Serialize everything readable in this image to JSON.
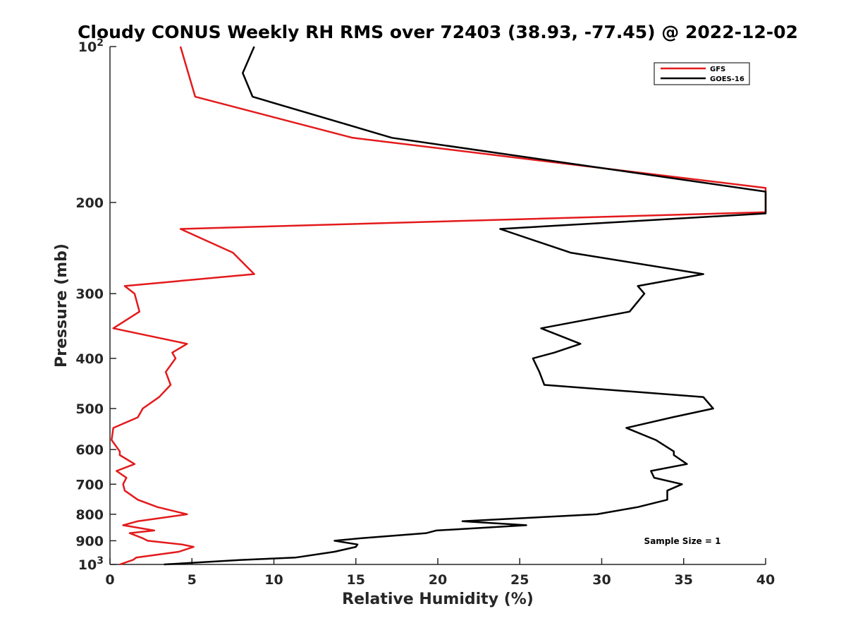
{
  "chart_data": {
    "type": "line",
    "title": "Cloudy CONUS Weekly RH RMS over 72403 (38.93, -77.45) @ 2022-12-02",
    "xlabel": "Relative Humidity (%)",
    "ylabel": "Pressure (mb)",
    "xlim": [
      0,
      40
    ],
    "ylim": [
      100,
      1000
    ],
    "y_scale": "log",
    "y_reversed": true,
    "x_ticks": [
      "0",
      "5",
      "10",
      "15",
      "20",
      "25",
      "30",
      "35",
      "40"
    ],
    "y_ticks": [
      {
        "value": 100,
        "base": "10",
        "exp": "2"
      },
      {
        "value": 200,
        "label": "200"
      },
      {
        "value": 300,
        "label": "300"
      },
      {
        "value": 400,
        "label": "400"
      },
      {
        "value": 500,
        "label": "500"
      },
      {
        "value": 600,
        "label": "600"
      },
      {
        "value": 700,
        "label": "700"
      },
      {
        "value": 800,
        "label": "800"
      },
      {
        "value": 900,
        "label": "900"
      },
      {
        "value": 1000,
        "base": "10",
        "exp": "3"
      }
    ],
    "legend_position": "top-right",
    "annotation": "Sample Size = 1",
    "series": [
      {
        "name": "GFS",
        "color": "#e31a1c",
        "points": [
          [
            4.3,
            100
          ],
          [
            5.2,
            125
          ],
          [
            14.8,
            150
          ],
          [
            40,
            187.5
          ],
          [
            40,
            208.9
          ],
          [
            4.3,
            225
          ],
          [
            7.5,
            250
          ],
          [
            8.8,
            275
          ],
          [
            0.9,
            290
          ],
          [
            1.5,
            300
          ],
          [
            1.8,
            325
          ],
          [
            0.2,
            350
          ],
          [
            4.7,
            375
          ],
          [
            3.8,
            390
          ],
          [
            4.0,
            400
          ],
          [
            3.4,
            425
          ],
          [
            3.7,
            450
          ],
          [
            3.0,
            475
          ],
          [
            2.0,
            500
          ],
          [
            1.7,
            520
          ],
          [
            0.2,
            545
          ],
          [
            0.1,
            575
          ],
          [
            0.6,
            605
          ],
          [
            0.6,
            615
          ],
          [
            1.5,
            640
          ],
          [
            0.4,
            660
          ],
          [
            1.0,
            680
          ],
          [
            0.8,
            700
          ],
          [
            0.9,
            720
          ],
          [
            1.7,
            750
          ],
          [
            2.9,
            775
          ],
          [
            4.7,
            800
          ],
          [
            1.7,
            825
          ],
          [
            0.8,
            840
          ],
          [
            2.7,
            860
          ],
          [
            1.2,
            870
          ],
          [
            2.0,
            890
          ],
          [
            2.3,
            900
          ],
          [
            4.4,
            915
          ],
          [
            5.1,
            925
          ],
          [
            4.2,
            945
          ],
          [
            1.6,
            970
          ],
          [
            1.4,
            980
          ],
          [
            0.6,
            1000
          ]
        ]
      },
      {
        "name": "GOES-16",
        "color": "#000000",
        "points": [
          [
            8.8,
            100
          ],
          [
            8.1,
            112.5
          ],
          [
            8.7,
            125
          ],
          [
            17.2,
            150
          ],
          [
            40,
            190.6
          ],
          [
            40,
            210
          ],
          [
            23.8,
            225
          ],
          [
            28.1,
            250
          ],
          [
            36.2,
            275
          ],
          [
            32.2,
            290
          ],
          [
            32.6,
            300
          ],
          [
            31.7,
            325
          ],
          [
            26.3,
            350
          ],
          [
            28.7,
            375
          ],
          [
            27.1,
            390
          ],
          [
            25.8,
            400
          ],
          [
            26.2,
            425
          ],
          [
            26.5,
            450
          ],
          [
            36.2,
            475
          ],
          [
            36.8,
            500
          ],
          [
            34.3,
            520
          ],
          [
            31.5,
            545
          ],
          [
            33.3,
            575
          ],
          [
            34.4,
            605
          ],
          [
            34.4,
            615
          ],
          [
            35.2,
            640
          ],
          [
            33.0,
            660
          ],
          [
            33.2,
            680
          ],
          [
            34.9,
            700
          ],
          [
            34.0,
            720
          ],
          [
            34.0,
            750
          ],
          [
            32.2,
            775
          ],
          [
            29.7,
            800
          ],
          [
            21.5,
            825
          ],
          [
            25.4,
            840
          ],
          [
            19.9,
            860
          ],
          [
            19.3,
            870
          ],
          [
            15.3,
            890
          ],
          [
            13.7,
            900
          ],
          [
            15.1,
            915
          ],
          [
            15.0,
            925
          ],
          [
            13.7,
            945
          ],
          [
            11.3,
            970
          ],
          [
            8.0,
            980
          ],
          [
            3.3,
            1000
          ]
        ]
      }
    ]
  }
}
